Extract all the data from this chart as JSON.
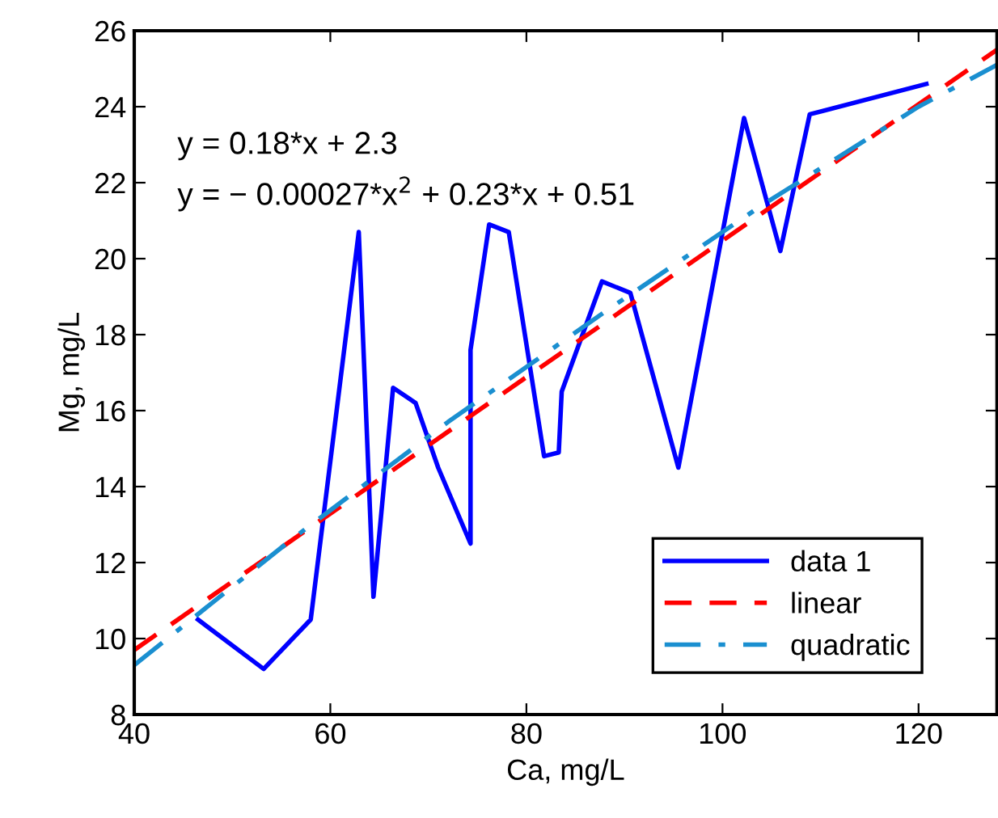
{
  "chart_data": {
    "type": "line",
    "xlabel": "Ca, mg/L",
    "ylabel": "Mg, mg/L",
    "xlim": [
      40,
      128
    ],
    "xticks": [
      40,
      60,
      80,
      100,
      120
    ],
    "ylim": [
      8,
      26
    ],
    "yticks": [
      8,
      10,
      12,
      14,
      16,
      18,
      20,
      22,
      24,
      26
    ],
    "grid": false,
    "legend": "bottom right",
    "marker": "none",
    "annotations": [
      "y = 0.18*x + 2.3",
      "y = − 0.00027*x$^{2}$ + 0.23*x + 0.51"
    ],
    "series": [
      {
        "name": "data 1",
        "color": "#0000ff",
        "line_style": "solid",
        "x": [
          46.5,
          53.2,
          58.0,
          62.9,
          64.4,
          66.4,
          68.7,
          71.0,
          74.3,
          74.3,
          76.2,
          78.2,
          81.8,
          83.3,
          83.6,
          87.7,
          90.6,
          95.5,
          102.2,
          105.9,
          108.9,
          120.8
        ],
        "values": [
          10.5,
          9.2,
          10.5,
          20.7,
          11.1,
          16.6,
          16.2,
          14.5,
          12.5,
          17.6,
          20.9,
          20.7,
          14.8,
          14.9,
          16.5,
          19.4,
          19.1,
          14.5,
          23.7,
          20.2,
          23.8,
          24.6
        ]
      },
      {
        "name": "linear",
        "color": "#ff0000",
        "line_style": "dashed",
        "x": [
          40,
          128
        ],
        "values": [
          9.7,
          25.5
        ]
      },
      {
        "name": "quadratic",
        "color": "#1a8fd0",
        "line_style": "dashdot",
        "x": [
          40,
          56,
          72,
          88,
          104,
          120,
          128
        ],
        "values": [
          9.3,
          12.6,
          15.7,
          18.6,
          21.4,
          24.0,
          25.1
        ]
      }
    ]
  }
}
